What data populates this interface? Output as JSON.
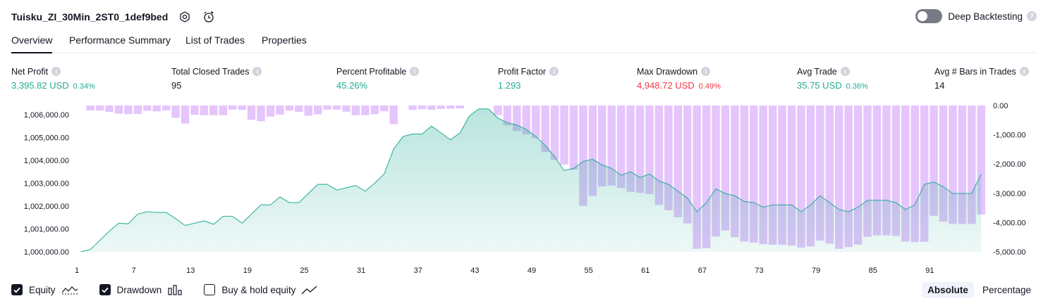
{
  "header": {
    "title": "Tuisku_ZI_30Min_2ST0_1def9bed",
    "deep_backtesting_label": "Deep Backtesting",
    "deep_backtesting_on": false
  },
  "tabs": [
    {
      "label": "Overview",
      "active": true
    },
    {
      "label": "Performance Summary",
      "active": false
    },
    {
      "label": "List of Trades",
      "active": false
    },
    {
      "label": "Properties",
      "active": false
    }
  ],
  "metrics": [
    {
      "label": "Net Profit",
      "value": "3,395.82 USD",
      "sub": "0.34%",
      "color": "#22ab94"
    },
    {
      "label": "Total Closed Trades",
      "value": "95",
      "sub": "",
      "color": "#131722"
    },
    {
      "label": "Percent Profitable",
      "value": "45.26%",
      "sub": "",
      "color": "#22ab94"
    },
    {
      "label": "Profit Factor",
      "value": "1.293",
      "sub": "",
      "color": "#22ab94"
    },
    {
      "label": "Max Drawdown",
      "value": "4,948.72 USD",
      "sub": "0.49%",
      "color": "#f23645"
    },
    {
      "label": "Avg Trade",
      "value": "35.75 USD",
      "sub": "0.36%",
      "color": "#22ab94"
    },
    {
      "label": "Avg # Bars in Trades",
      "value": "14",
      "sub": "",
      "color": "#131722"
    }
  ],
  "legend": [
    {
      "label": "Equity",
      "checked": true,
      "icon": "equity-line-icon"
    },
    {
      "label": "Drawdown",
      "checked": true,
      "icon": "drawdown-bars-icon"
    },
    {
      "label": "Buy & hold equity",
      "checked": false,
      "icon": "buy-hold-line-icon"
    }
  ],
  "modes": [
    {
      "label": "Absolute",
      "active": true
    },
    {
      "label": "Percentage",
      "active": false
    }
  ],
  "colors": {
    "equity_line": "#22ab94",
    "equity_fill": "#22ab94",
    "drawdown_bar": "#e1bbfb",
    "drawdown_line": "#5b9cf6",
    "text": "#131722"
  },
  "chart_data": {
    "type": "area",
    "x_ticks": [
      "1",
      "7",
      "13",
      "19",
      "25",
      "31",
      "37",
      "43",
      "49",
      "55",
      "61",
      "67",
      "73",
      "79",
      "85",
      "91"
    ],
    "left_axis_ticks": [
      "1,000,000.00",
      "1,001,000.00",
      "1,002,000.00",
      "1,003,000.00",
      "1,004,000.00",
      "1,005,000.00",
      "1,006,000.00"
    ],
    "right_axis_ticks": [
      "0.00",
      "-1,000.00",
      "-2,000.00",
      "-3,000.00",
      "-4,000.00",
      "-5,000.00"
    ],
    "left_ylim": [
      1000000,
      1006400
    ],
    "right_ylim": [
      -5000,
      0
    ],
    "x": [
      1,
      2,
      3,
      4,
      5,
      6,
      7,
      8,
      9,
      10,
      11,
      12,
      13,
      14,
      15,
      16,
      17,
      18,
      19,
      20,
      21,
      22,
      23,
      24,
      25,
      26,
      27,
      28,
      29,
      30,
      31,
      32,
      33,
      34,
      35,
      36,
      37,
      38,
      39,
      40,
      41,
      42,
      43,
      44,
      45,
      46,
      47,
      48,
      49,
      50,
      51,
      52,
      53,
      54,
      55,
      56,
      57,
      58,
      59,
      60,
      61,
      62,
      63,
      64,
      65,
      66,
      67,
      68,
      69,
      70,
      71,
      72,
      73,
      74,
      75,
      76,
      77,
      78,
      79,
      80,
      81,
      82,
      83,
      84,
      85,
      86,
      87,
      88,
      89,
      90,
      91,
      92,
      93,
      94,
      95,
      96
    ],
    "series": [
      {
        "name": "Equity",
        "values": [
          1000000,
          1000100,
          1000500,
          1000900,
          1001250,
          1001220,
          1001650,
          1001750,
          1001720,
          1001720,
          1001450,
          1001150,
          1001250,
          1001350,
          1001200,
          1001550,
          1001550,
          1001250,
          1001650,
          1002050,
          1002050,
          1002400,
          1002150,
          1002150,
          1002550,
          1002950,
          1002950,
          1002700,
          1002800,
          1002900,
          1002650,
          1003000,
          1003400,
          1004500,
          1005050,
          1005150,
          1005150,
          1005500,
          1005200,
          1004900,
          1005200,
          1005950,
          1006250,
          1006250,
          1005850,
          1005650,
          1005550,
          1005350,
          1005050,
          1004650,
          1004150,
          1003550,
          1003650,
          1003950,
          1004050,
          1003800,
          1003650,
          1003350,
          1003500,
          1003250,
          1003400,
          1003100,
          1002950,
          1002650,
          1002350,
          1001750,
          1002150,
          1002750,
          1002550,
          1002450,
          1002200,
          1002150,
          1001950,
          1002050,
          1002050,
          1002050,
          1001750,
          1002050,
          1002450,
          1002150,
          1001850,
          1001750,
          1001950,
          1002250,
          1002250,
          1002250,
          1002150,
          1001850,
          1002050,
          1002950,
          1003050,
          1002850,
          1002550,
          1002550,
          1002550,
          1003400
        ]
      },
      {
        "name": "Drawdown",
        "values": [
          0,
          -170,
          -170,
          -220,
          -280,
          -300,
          -290,
          -180,
          -200,
          -170,
          -420,
          -620,
          -320,
          -330,
          -330,
          -330,
          -140,
          -150,
          -490,
          -540,
          -380,
          -310,
          -170,
          -220,
          -350,
          -300,
          -140,
          -140,
          -210,
          -330,
          -330,
          -300,
          -200,
          -640,
          0,
          -150,
          -130,
          -150,
          -120,
          -110,
          -100,
          0,
          0,
          0,
          -330,
          -680,
          -870,
          -990,
          -1120,
          -1590,
          -1860,
          -2020,
          -2200,
          -3430,
          -3090,
          -2770,
          -2740,
          -2820,
          -2950,
          -2990,
          -3030,
          -3400,
          -3580,
          -3820,
          -4030,
          -4900,
          -4880,
          -4480,
          -4270,
          -4500,
          -4650,
          -4690,
          -4740,
          -4760,
          -4760,
          -4790,
          -4860,
          -4820,
          -4620,
          -4720,
          -4900,
          -4840,
          -4760,
          -4490,
          -4440,
          -4440,
          -4460,
          -4650,
          -4670,
          -4660,
          -3770,
          -3970,
          -4050,
          -4050,
          -4050,
          -3730
        ]
      }
    ],
    "xlabel": "",
    "ylabel": ""
  }
}
